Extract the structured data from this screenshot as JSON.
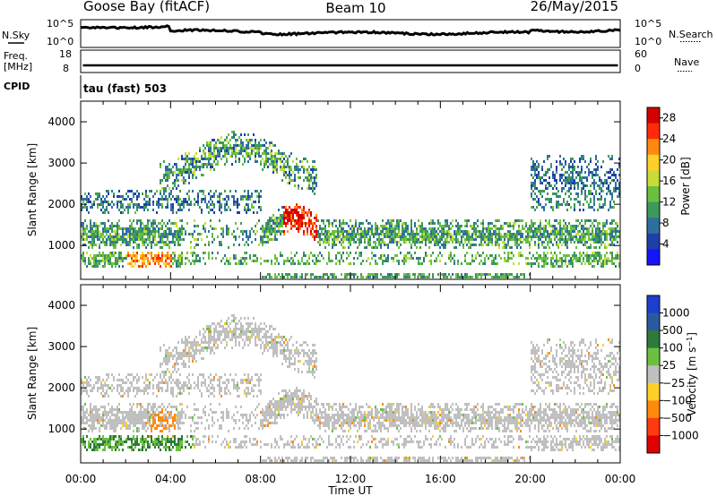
{
  "header": {
    "station": "Goose Bay (fitACF)",
    "beam": "Beam 10",
    "date": "26/May/2015"
  },
  "labels": {
    "nsky": "N.Sky",
    "freq_line1": "Freq.",
    "freq_line2": "[MHz]",
    "cpid": "CPID",
    "nsearch": "N.Search",
    "nave": "Nave",
    "program": "tau (fast) 503",
    "x_axis_title": "Time UT",
    "y_axis_title": "Slant Range [km]",
    "power_title": "Power [dB]",
    "velocity_title": "Velocity"
  },
  "top_panels": {
    "noise_ticks": [
      "10^5",
      "10^0"
    ],
    "freq_left_ticks": [
      "18",
      "8"
    ],
    "nave_right_ticks": [
      "60",
      "0"
    ]
  },
  "chart_data": [
    {
      "type": "heatmap",
      "name": "power",
      "ylabel": "Slant Range [km]",
      "xlabel": "Time UT",
      "x_ticks": [
        "00:00",
        "04:00",
        "08:00",
        "12:00",
        "16:00",
        "20:00",
        "00:00"
      ],
      "y_ticks": [
        1000,
        2000,
        3000,
        4000
      ],
      "ylim": [
        180,
        4500
      ],
      "colorbar": {
        "label": "Power [dB]",
        "ticks": [
          4,
          8,
          12,
          16,
          20,
          24,
          28
        ],
        "range": [
          0,
          30
        ]
      }
    },
    {
      "type": "heatmap",
      "name": "velocity",
      "ylabel": "Slant Range [km]",
      "xlabel": "Time UT",
      "x_ticks": [
        "00:00",
        "04:00",
        "08:00",
        "12:00",
        "16:00",
        "20:00",
        "00:00"
      ],
      "y_ticks": [
        1000,
        2000,
        3000,
        4000
      ],
      "ylim": [
        180,
        4500
      ],
      "colorbar": {
        "label": "Velocity [m s-1]",
        "ticks": [
          "1000",
          "500",
          "100",
          "25",
          "−25",
          "−100",
          "−500",
          "−1000"
        ]
      }
    }
  ]
}
